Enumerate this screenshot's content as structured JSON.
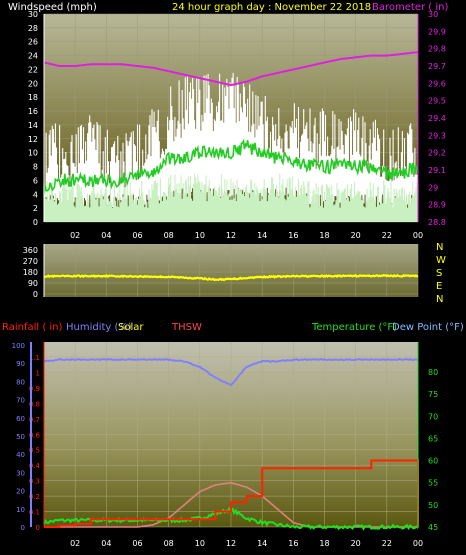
{
  "header": {
    "left_label": "Windspeed (mph)",
    "title": "24 hour graph day : November 22 2018",
    "right_label": "Barometer ( in)"
  },
  "bottom_header": {
    "rainfall": "Rainfall ( in)",
    "humidity": "Humidity (%)",
    "solar": "Solar",
    "thsw": "THSW",
    "temperature": "Temperature (°F)",
    "dew_point": "Dew Point (°F)"
  },
  "colors": {
    "windspeed": "#ffffff",
    "gust_light": "#c8f0c0",
    "wind_avg": "#22cc22",
    "barometer": "#e020e0",
    "direction": "#ffff00",
    "rainfall": "#ff2200",
    "humidity": "#8080ff",
    "solar": "#ffff00",
    "thsw": "#ff4444",
    "temperature": "#22dd22",
    "dew_point": "#7fbfff",
    "pink_curve": "#e08080"
  },
  "chart_data": [
    {
      "type": "line",
      "title": "24 hour graph day : November 22 2018",
      "ylabel": "Windspeed (mph)",
      "y2label": "Barometer ( in)",
      "ylim": [
        0,
        30
      ],
      "y2lim": [
        28.8,
        30
      ],
      "yticks": [
        "0",
        "2",
        "4",
        "6",
        "8",
        "10",
        "12",
        "14",
        "16",
        "18",
        "20",
        "22",
        "24",
        "26",
        "28",
        "30"
      ],
      "y2ticks": [
        "28.8",
        "28.9",
        "29",
        "29.1",
        "29.2",
        "29.3",
        "29.4",
        "29.5",
        "29.6",
        "29.7",
        "29.8",
        "29.9",
        "30"
      ],
      "xticks": [
        "02",
        "04",
        "06",
        "08",
        "10",
        "12",
        "14",
        "16",
        "18",
        "20",
        "22",
        "00"
      ],
      "x": [
        0,
        1,
        2,
        3,
        4,
        5,
        6,
        7,
        8,
        9,
        10,
        11,
        12,
        13,
        14,
        15,
        16,
        17,
        18,
        19,
        20,
        21,
        22,
        23,
        24
      ],
      "series": [
        {
          "name": "Windspeed (mph)",
          "values": [
            9,
            10,
            10,
            11,
            10,
            9,
            10,
            12,
            15,
            17,
            17,
            17,
            18,
            16,
            14,
            13,
            13,
            12,
            12,
            12,
            12,
            11,
            10,
            10,
            10
          ]
        },
        {
          "name": "Barometer ( in)",
          "values": [
            29.72,
            29.7,
            29.7,
            29.71,
            29.71,
            29.71,
            29.7,
            29.69,
            29.67,
            29.65,
            29.63,
            29.61,
            29.59,
            29.61,
            29.64,
            29.66,
            29.68,
            29.7,
            29.72,
            29.74,
            29.75,
            29.76,
            29.76,
            29.77,
            29.78
          ]
        },
        {
          "name": "Wind average",
          "values": [
            5,
            6,
            6,
            6,
            6,
            6,
            7,
            7,
            9,
            9,
            10,
            10,
            10,
            11,
            10,
            9,
            9,
            8,
            8,
            8,
            8,
            8,
            7,
            7,
            8
          ]
        },
        {
          "name": "Wind low",
          "values": [
            2,
            2,
            2,
            2,
            2,
            2,
            2,
            2,
            3,
            3,
            3,
            3,
            3,
            3,
            3,
            3,
            3,
            2,
            2,
            2,
            2,
            2,
            2,
            2,
            2
          ]
        }
      ]
    },
    {
      "type": "line",
      "ylim": [
        0,
        360
      ],
      "yticks": [
        "0",
        "90",
        "180",
        "270",
        "360"
      ],
      "direction_labels": [
        "N",
        "W",
        "S",
        "E",
        "N"
      ],
      "xticks": [
        "02",
        "04",
        "06",
        "08",
        "10",
        "12",
        "14",
        "16",
        "18",
        "20",
        "22",
        "00"
      ],
      "x": [
        0,
        1,
        2,
        3,
        4,
        5,
        6,
        7,
        8,
        9,
        10,
        11,
        12,
        13,
        14,
        15,
        16,
        17,
        18,
        19,
        20,
        21,
        22,
        23,
        24
      ],
      "series": [
        {
          "name": "Wind direction",
          "values": [
            145,
            145,
            147,
            146,
            148,
            145,
            144,
            142,
            140,
            134,
            128,
            118,
            122,
            132,
            140,
            142,
            145,
            146,
            146,
            147,
            148,
            149,
            150,
            148,
            148
          ]
        }
      ]
    },
    {
      "type": "line",
      "ylabel": "Rainfall ( in)",
      "ylim": [
        0,
        1.1
      ],
      "yticks": [
        "0",
        "0.1",
        "0.2",
        "0.3",
        "0.4",
        "0.5",
        "0.6",
        "0.7",
        "0.8",
        "0.9",
        "1",
        "1.1"
      ],
      "humidity_ticks": [
        "0",
        "10",
        "20",
        "30",
        "40",
        "50",
        "60",
        "70",
        "80",
        "90",
        "100"
      ],
      "temp_ticks": [
        "45",
        "50",
        "55",
        "60",
        "65",
        "70",
        "75",
        "80"
      ],
      "xticks": [
        "02",
        "04",
        "06",
        "08",
        "10",
        "12",
        "14",
        "16",
        "18",
        "20",
        "22",
        "00"
      ],
      "x": [
        0,
        1,
        2,
        3,
        4,
        5,
        6,
        7,
        8,
        9,
        10,
        11,
        12,
        13,
        14,
        15,
        16,
        17,
        18,
        19,
        20,
        21,
        22,
        23,
        24
      ],
      "series": [
        {
          "name": "Rainfall ( in)",
          "values": [
            0,
            0.01,
            0.02,
            0.05,
            0.05,
            0.05,
            0.05,
            0.05,
            0.05,
            0.05,
            0.05,
            0.1,
            0.16,
            0.2,
            0.38,
            0.38,
            0.38,
            0.38,
            0.38,
            0.38,
            0.38,
            0.43,
            0.43,
            0.43,
            0.43
          ]
        },
        {
          "name": "Humidity (%)",
          "values": [
            91,
            92,
            92,
            92,
            92,
            92,
            92,
            92,
            92,
            91,
            88,
            82,
            78,
            88,
            91,
            91,
            92,
            92,
            92,
            92,
            92,
            92,
            92,
            92,
            92
          ]
        },
        {
          "name": "Temperature (°F)",
          "values": [
            46,
            46.5,
            46.5,
            46.5,
            46.5,
            46.5,
            46.5,
            46.5,
            46.5,
            46.5,
            47,
            48,
            49,
            47,
            46,
            45.5,
            45,
            45,
            45,
            45,
            45,
            45,
            45,
            45,
            45
          ]
        },
        {
          "name": "THSW",
          "values": [
            45,
            45,
            45,
            45,
            45,
            45,
            45,
            45.5,
            47,
            50,
            53,
            54.5,
            55,
            54,
            52,
            49,
            46,
            45,
            45,
            45,
            45,
            45,
            45,
            45,
            45
          ]
        }
      ]
    }
  ]
}
